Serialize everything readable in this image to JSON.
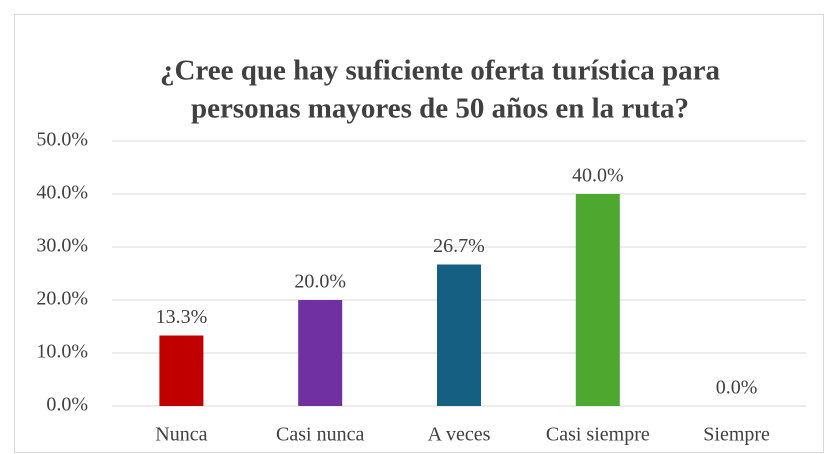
{
  "chart_data": {
    "type": "bar",
    "title": [
      "¿Cree que hay suficiente oferta turística para",
      "personas mayores de 50 años en la ruta?"
    ],
    "categories": [
      "Nunca",
      "Casi nunca",
      "A veces",
      "Casi siempre",
      "Siempre"
    ],
    "values": [
      13.3,
      20.0,
      26.7,
      40.0,
      0.0
    ],
    "value_labels": [
      "13.3%",
      "20.0%",
      "26.7%",
      "40.0%",
      "0.0%"
    ],
    "colors": [
      "#c00000",
      "#7030a0",
      "#156082",
      "#4ea72e",
      "#000000"
    ],
    "ylim": [
      0,
      50
    ],
    "yticks": [
      {
        "value": 0,
        "label": "0.0%"
      },
      {
        "value": 10,
        "label": "10.0%"
      },
      {
        "value": 20,
        "label": "20.0%"
      },
      {
        "value": 30,
        "label": "30.0%"
      },
      {
        "value": 40,
        "label": "40.0%"
      },
      {
        "value": 50,
        "label": "50.0%"
      }
    ],
    "grid": true
  }
}
